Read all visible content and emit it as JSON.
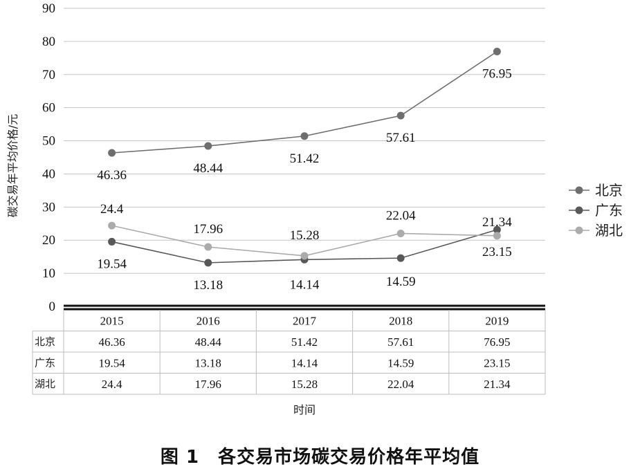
{
  "chart_data": {
    "type": "line",
    "xlabel": "时间",
    "ylabel": "碳交易年平均价格/元",
    "categories": [
      "2015",
      "2016",
      "2017",
      "2018",
      "2019"
    ],
    "ylim": [
      0,
      90
    ],
    "yticks": [
      0,
      10,
      20,
      30,
      40,
      50,
      60,
      70,
      80,
      90
    ],
    "grid": true,
    "legend_position": "right",
    "series": [
      {
        "name": "北京",
        "values": [
          46.36,
          48.44,
          51.42,
          57.61,
          76.95
        ],
        "color": "#6e6e6e"
      },
      {
        "name": "广东",
        "values": [
          19.54,
          13.18,
          14.14,
          14.59,
          23.15
        ],
        "color": "#585858"
      },
      {
        "name": "湖北",
        "values": [
          24.4,
          17.96,
          15.28,
          22.04,
          21.34
        ],
        "color": "#ababab"
      }
    ],
    "data_labels": {
      "北京": [
        "46.36",
        "48.44",
        "51.42",
        "57.61",
        "76.95"
      ],
      "广东": [
        "19.54",
        "13.18",
        "14.14",
        "14.59",
        "23.15"
      ],
      "湖北": [
        "24.4",
        "17.96",
        "15.28",
        "22.04",
        "21.34"
      ]
    },
    "data_table": true
  },
  "caption": "图 1　各交易市场碳交易价格年平均值"
}
